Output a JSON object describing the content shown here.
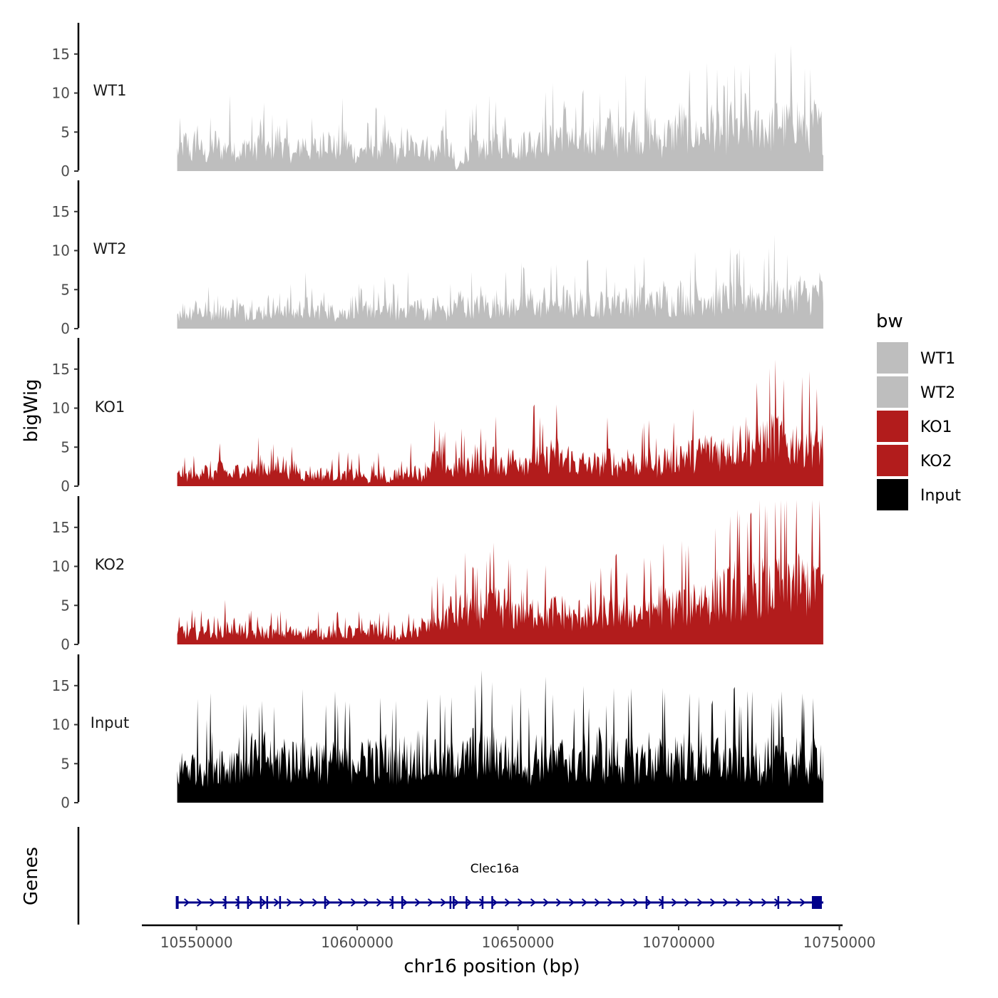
{
  "chart_data": {
    "type": "area",
    "chromosome": "chr16",
    "xlabel": "chr16 position (bp)",
    "ylabel": "bigWig",
    "genes_axis_label": "Genes",
    "xlim": [
      10533000,
      10751000
    ],
    "region": [
      10544000,
      10745000
    ],
    "x_ticks": [
      10550000,
      10600000,
      10650000,
      10700000,
      10750000
    ],
    "x_tick_labels": [
      "10550000",
      "10600000",
      "10650000",
      "10700000",
      "10750000"
    ],
    "ylim": [
      0,
      19
    ],
    "y_ticks": [
      0,
      5,
      10,
      15
    ],
    "y_tick_labels": [
      "0",
      "5",
      "10",
      "15"
    ],
    "legend": {
      "title": "bw",
      "position": "right",
      "entries": [
        {
          "label": "WT1",
          "color": "#bebebe"
        },
        {
          "label": "WT2",
          "color": "#bebebe"
        },
        {
          "label": "KO1",
          "color": "#b21c1c"
        },
        {
          "label": "KO2",
          "color": "#b21c1c"
        },
        {
          "label": "Input",
          "color": "#000000"
        }
      ]
    },
    "series": [
      {
        "name": "WT1",
        "color": "#bebebe",
        "x_start": 10544000,
        "x_end": 10745000,
        "values": [
          4,
          5,
          6,
          3,
          8,
          4,
          3,
          5,
          6,
          4,
          5,
          7,
          4,
          3,
          6,
          5,
          4,
          8,
          5,
          4,
          6,
          7,
          5,
          4,
          3,
          5,
          6,
          4,
          5,
          4,
          8,
          6,
          5,
          4,
          7,
          5,
          4,
          3,
          5,
          4,
          6,
          5,
          4,
          6,
          5,
          3,
          4,
          6,
          5,
          4,
          7,
          5,
          4,
          3,
          8,
          5,
          4,
          0,
          2,
          4,
          5,
          6,
          4,
          5,
          7,
          6,
          5,
          8,
          6,
          5,
          4,
          7,
          6,
          5,
          9,
          7,
          6,
          8,
          7,
          10,
          8,
          6,
          5,
          7,
          6,
          8,
          7,
          6,
          9,
          8,
          6,
          7,
          9,
          10,
          8,
          7,
          9,
          8,
          7,
          6,
          8,
          7,
          9,
          10,
          8,
          9,
          7,
          8,
          9,
          10,
          9,
          8,
          7,
          10,
          9,
          8,
          11,
          9,
          8,
          10,
          9,
          8,
          10,
          11,
          9,
          10,
          12,
          10,
          9,
          8,
          10,
          9,
          8
        ]
      },
      {
        "name": "WT2",
        "color": "#bebebe",
        "x_start": 10544000,
        "x_end": 10745000,
        "values": [
          3,
          4,
          3,
          4,
          5,
          3,
          4,
          3,
          5,
          4,
          3,
          4,
          5,
          4,
          3,
          5,
          4,
          3,
          4,
          5,
          4,
          3,
          5,
          4,
          3,
          4,
          5,
          4,
          3,
          4,
          5,
          4,
          3,
          4,
          3,
          4,
          5,
          4,
          3,
          5,
          4,
          3,
          4,
          5,
          4,
          3,
          4,
          5,
          4,
          5,
          4,
          3,
          4,
          5,
          4,
          3,
          4,
          5,
          6,
          4,
          5,
          4,
          6,
          5,
          4,
          5,
          6,
          5,
          4,
          5,
          6,
          5,
          6,
          5,
          4,
          6,
          5,
          6,
          5,
          6,
          5,
          4,
          6,
          5,
          6,
          5,
          4,
          6,
          5,
          6,
          7,
          5,
          6,
          5,
          6,
          7,
          5,
          6,
          5,
          7,
          6,
          5,
          6,
          7,
          6,
          5,
          7,
          6,
          7,
          6,
          5,
          7,
          6,
          7,
          6,
          7,
          6,
          8,
          6,
          7,
          6,
          7,
          8,
          6,
          7,
          6,
          7,
          8,
          7,
          6,
          7,
          8,
          7
        ]
      },
      {
        "name": "KO1",
        "color": "#b21c1c",
        "x_start": 10544000,
        "x_end": 10745000,
        "values": [
          2,
          3,
          2,
          3,
          2,
          4,
          3,
          2,
          3,
          4,
          3,
          2,
          3,
          4,
          3,
          4,
          3,
          5,
          4,
          3,
          4,
          5,
          4,
          3,
          4,
          3,
          2,
          3,
          2,
          3,
          2,
          3,
          2,
          3,
          2,
          3,
          2,
          3,
          2,
          1,
          2,
          3,
          2,
          1,
          2,
          3,
          2,
          3,
          4,
          3,
          2,
          4,
          5,
          6,
          4,
          5,
          3,
          4,
          5,
          4,
          5,
          6,
          5,
          4,
          5,
          6,
          5,
          4,
          6,
          5,
          6,
          5,
          6,
          7,
          6,
          5,
          6,
          8,
          6,
          5,
          6,
          5,
          4,
          5,
          4,
          5,
          4,
          5,
          6,
          5,
          4,
          5,
          6,
          5,
          4,
          5,
          6,
          5,
          4,
          5,
          6,
          5,
          6,
          7,
          6,
          7,
          6,
          7,
          8,
          7,
          8,
          7,
          8,
          9,
          8,
          9,
          10,
          9,
          8,
          10,
          9,
          10,
          11,
          10,
          9,
          8,
          9,
          10,
          9,
          10,
          9,
          8,
          9
        ]
      },
      {
        "name": "KO2",
        "color": "#b21c1c",
        "x_start": 10544000,
        "x_end": 10745000,
        "values": [
          2,
          3,
          2,
          3,
          2,
          3,
          4,
          3,
          2,
          3,
          4,
          3,
          4,
          3,
          2,
          3,
          2,
          3,
          2,
          3,
          2,
          3,
          2,
          3,
          2,
          3,
          2,
          3,
          2,
          3,
          2,
          3,
          2,
          3,
          2,
          3,
          2,
          3,
          2,
          3,
          4,
          3,
          2,
          3,
          2,
          1,
          2,
          3,
          2,
          3,
          4,
          3,
          5,
          6,
          5,
          6,
          7,
          6,
          7,
          8,
          7,
          6,
          8,
          7,
          8,
          9,
          7,
          8,
          7,
          6,
          8,
          7,
          6,
          7,
          8,
          7,
          6,
          7,
          6,
          7,
          6,
          5,
          6,
          7,
          6,
          5,
          6,
          7,
          6,
          7,
          8,
          7,
          6,
          7,
          6,
          7,
          8,
          7,
          8,
          9,
          8,
          7,
          8,
          9,
          8,
          9,
          10,
          9,
          10,
          9,
          10,
          11,
          10,
          11,
          12,
          11,
          10,
          11,
          12,
          13,
          12,
          11,
          12,
          13,
          12,
          13,
          14,
          13,
          12,
          13,
          14,
          13,
          12
        ]
      },
      {
        "name": "Input",
        "color": "#000000",
        "x_start": 10544000,
        "x_end": 10745000,
        "values": [
          6,
          7,
          8,
          7,
          9,
          8,
          7,
          10,
          8,
          9,
          7,
          8,
          10,
          9,
          8,
          11,
          9,
          8,
          10,
          9,
          8,
          9,
          10,
          8,
          9,
          11,
          9,
          8,
          10,
          9,
          8,
          9,
          10,
          8,
          9,
          8,
          10,
          9,
          8,
          11,
          9,
          8,
          10,
          9,
          8,
          9,
          10,
          8,
          9,
          10,
          11,
          9,
          8,
          10,
          9,
          8,
          9,
          10,
          9,
          8,
          11,
          10,
          12,
          9,
          10,
          11,
          9,
          10,
          8,
          9,
          10,
          9,
          8,
          10,
          9,
          11,
          10,
          9,
          8,
          10,
          9,
          8,
          9,
          10,
          8,
          9,
          11,
          9,
          8,
          10,
          9,
          8,
          9,
          10,
          8,
          9,
          10,
          9,
          8,
          10,
          9,
          8,
          11,
          9,
          10,
          9,
          8,
          10,
          9,
          8,
          10,
          9,
          8,
          9,
          10,
          8,
          9,
          10,
          9,
          8,
          10,
          9,
          8,
          9,
          10,
          8,
          9,
          10,
          9,
          8,
          9,
          10,
          9
        ]
      }
    ],
    "gene_track": {
      "name": "Clec16a",
      "strand": "+",
      "start": 10544000,
      "end": 10745000,
      "color": "#00008b",
      "exons": [
        10544000,
        10559000,
        10563000,
        10566000,
        10570000,
        10572000,
        10576000,
        10590000,
        10611000,
        10614000,
        10629000,
        10630000,
        10634000,
        10639000,
        10642000,
        10690000,
        10695000,
        10731000,
        10743000
      ]
    }
  }
}
